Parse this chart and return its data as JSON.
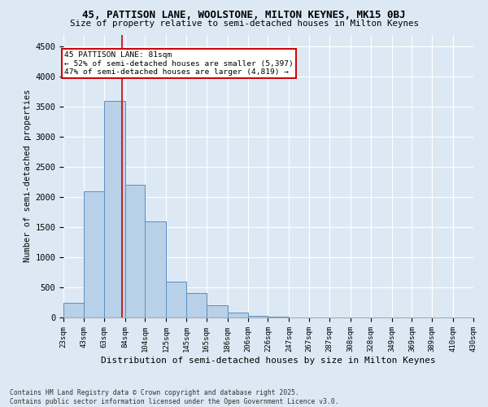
{
  "title1": "45, PATTISON LANE, WOOLSTONE, MILTON KEYNES, MK15 0BJ",
  "title2": "Size of property relative to semi-detached houses in Milton Keynes",
  "xlabel": "Distribution of semi-detached houses by size in Milton Keynes",
  "ylabel": "Number of semi-detached properties",
  "footer1": "Contains HM Land Registry data © Crown copyright and database right 2025.",
  "footer2": "Contains public sector information licensed under the Open Government Licence v3.0.",
  "annotation_title": "45 PATTISON LANE: 81sqm",
  "annotation_line1": "← 52% of semi-detached houses are smaller (5,397)",
  "annotation_line2": "47% of semi-detached houses are larger (4,819) →",
  "property_size": 81,
  "bin_edges": [
    23,
    43,
    63,
    84,
    104,
    125,
    145,
    165,
    186,
    206,
    226,
    247,
    267,
    287,
    308,
    328,
    349,
    369,
    389,
    410,
    430
  ],
  "bar_heights": [
    250,
    2100,
    3600,
    2200,
    1600,
    600,
    400,
    200,
    80,
    30,
    10,
    5,
    3,
    2,
    1,
    1,
    1,
    0,
    0,
    0
  ],
  "bar_color": "#b8d0e8",
  "bar_edge_color": "#5a8fc0",
  "redline_color": "#cc0000",
  "background_color": "#dce9f5",
  "grid_color": "#ffffff",
  "ylim": [
    0,
    4700
  ],
  "yticks": [
    0,
    500,
    1000,
    1500,
    2000,
    2500,
    3000,
    3500,
    4000,
    4500
  ]
}
